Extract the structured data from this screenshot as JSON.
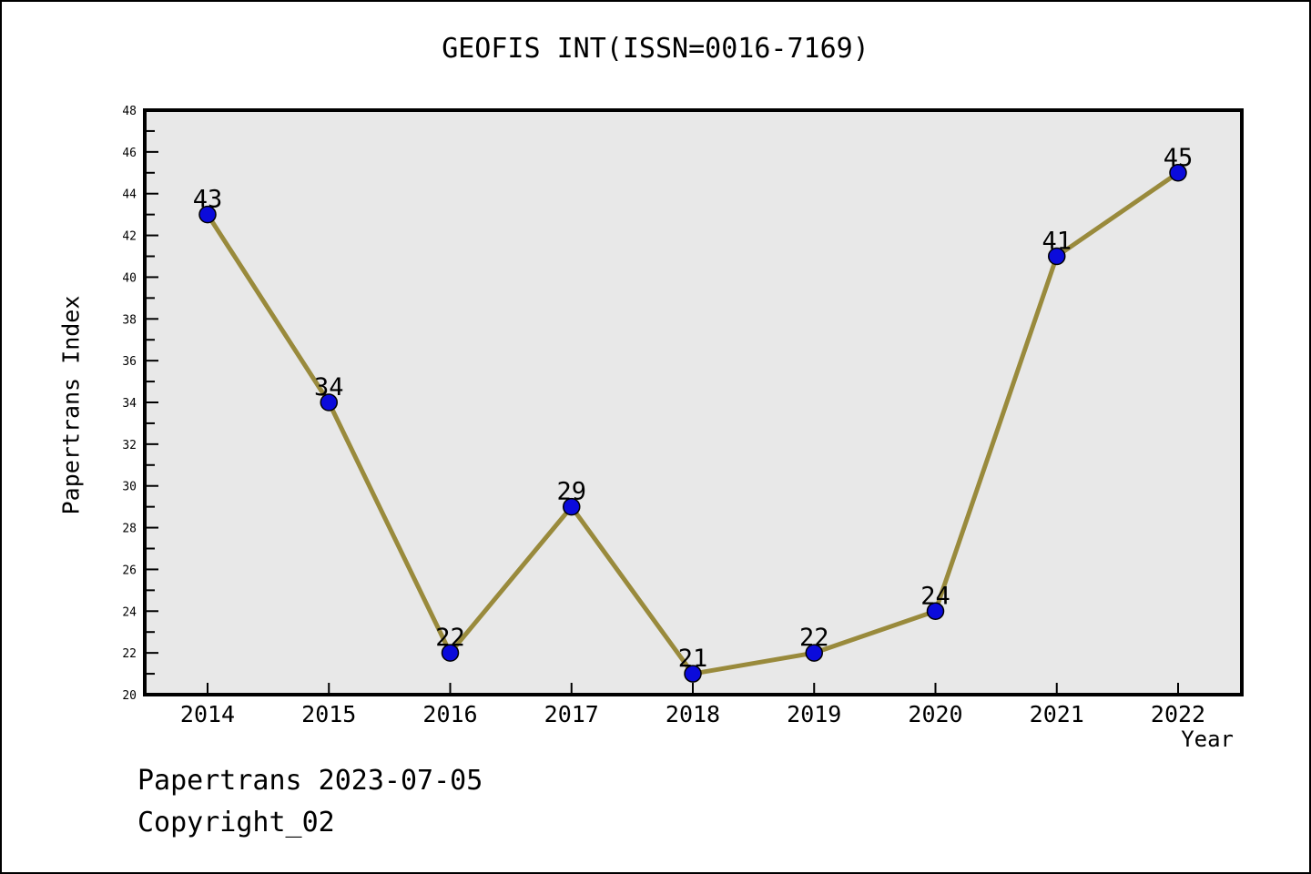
{
  "chart_data": {
    "type": "line",
    "title": "GEOFIS INT(ISSN=0016-7169)",
    "xlabel": "Year",
    "ylabel": "Papertrans Index",
    "x": [
      "2014",
      "2015",
      "2016",
      "2017",
      "2018",
      "2019",
      "2020",
      "2021",
      "2022"
    ],
    "values": [
      43,
      34,
      22,
      29,
      21,
      22,
      24,
      41,
      45
    ],
    "ylim": [
      20,
      48
    ],
    "ytick_major_step": 2,
    "ytick_minor_step": 1,
    "grid": false,
    "legend": "none",
    "colors": {
      "line": "#998a3c",
      "marker": "#0b0bdb",
      "marker_edge": "#000000",
      "plot_bg": "#e8e8e8",
      "frame": "#000000",
      "text": "#000000"
    }
  },
  "footer": {
    "line1": "Papertrans 2023-07-05",
    "line2": "Copyright_02"
  }
}
